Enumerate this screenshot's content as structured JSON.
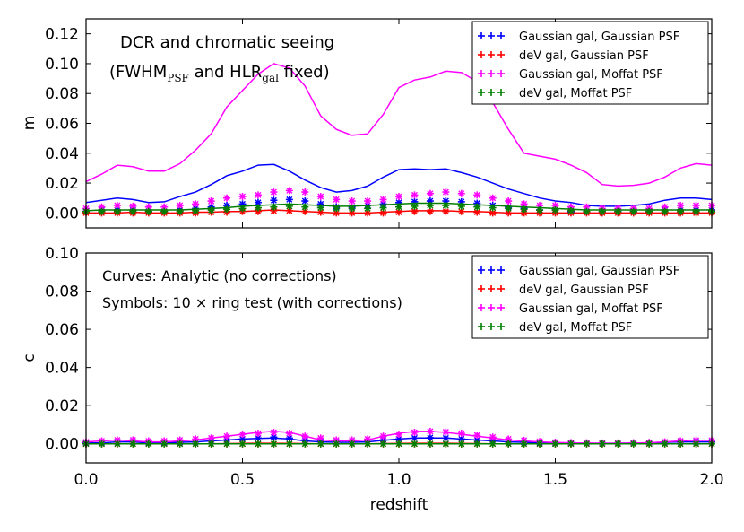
{
  "chart_data": [
    {
      "type": "line",
      "panel": "top",
      "ylabel": "m",
      "xlabel": "",
      "xlim": [
        0.0,
        2.0
      ],
      "ylim": [
        -0.01,
        0.13
      ],
      "yticks": [
        "0.00",
        "0.02",
        "0.04",
        "0.06",
        "0.08",
        "0.10",
        "0.12"
      ],
      "ytick_values": [
        0.0,
        0.02,
        0.04,
        0.06,
        0.08,
        0.1,
        0.12
      ],
      "xticks": [
        "",
        "",
        "",
        "",
        ""
      ],
      "xtick_values": [
        0.0,
        0.5,
        1.0,
        1.5,
        2.0
      ],
      "annotation": {
        "line1": "DCR and chromatic seeing",
        "line2_pre": "(FWHM",
        "line2_sub1": "PSF",
        "line2_mid": " and HLR",
        "line2_sub2": "gal",
        "line2_post": " fixed)"
      },
      "legend": {
        "location": "top-right",
        "entries": [
          {
            "label": "Gaussian gal, Gaussian PSF",
            "color": "#0000ff"
          },
          {
            "label": "deV gal, Gaussian PSF",
            "color": "#ff0000"
          },
          {
            "label": "Gaussian gal, Moffat PSF",
            "color": "#ff00ff"
          },
          {
            "label": "deV gal, Moffat PSF",
            "color": "#008000"
          }
        ]
      },
      "x": [
        0.0,
        0.05,
        0.1,
        0.15,
        0.2,
        0.25,
        0.3,
        0.35,
        0.4,
        0.45,
        0.5,
        0.55,
        0.6,
        0.65,
        0.7,
        0.75,
        0.8,
        0.85,
        0.9,
        0.95,
        1.0,
        1.05,
        1.1,
        1.15,
        1.2,
        1.25,
        1.3,
        1.35,
        1.4,
        1.45,
        1.5,
        1.55,
        1.6,
        1.65,
        1.7,
        1.75,
        1.8,
        1.85,
        1.9,
        1.95,
        2.0
      ],
      "series": [
        {
          "name": "Gaussian gal, Gaussian PSF",
          "color": "#0000ff",
          "values": [
            0.007,
            0.0085,
            0.01,
            0.009,
            0.007,
            0.0075,
            0.011,
            0.014,
            0.019,
            0.025,
            0.028,
            0.032,
            0.0325,
            0.028,
            0.022,
            0.017,
            0.014,
            0.015,
            0.018,
            0.024,
            0.029,
            0.0295,
            0.029,
            0.0295,
            0.027,
            0.024,
            0.02,
            0.016,
            0.013,
            0.01,
            0.008,
            0.007,
            0.005,
            0.0045,
            0.0045,
            0.005,
            0.006,
            0.0085,
            0.01,
            0.01,
            0.009
          ],
          "markers": [
            0.001,
            0.002,
            0.002,
            0.002,
            0.001,
            0.001,
            0.002,
            0.003,
            0.004,
            0.005,
            0.006,
            0.007,
            0.0085,
            0.009,
            0.008,
            0.006,
            0.004,
            0.004,
            0.005,
            0.006,
            0.007,
            0.0075,
            0.008,
            0.008,
            0.0075,
            0.0065,
            0.005,
            0.004,
            0.003,
            0.002,
            0.002,
            0.001,
            0.001,
            0.001,
            0.001,
            0.001,
            0.001,
            0.002,
            0.002,
            0.002,
            0.002
          ]
        },
        {
          "name": "deV gal, Gaussian PSF",
          "color": "#ff0000",
          "values": [
            0.0,
            0.0,
            0.0,
            0.0005,
            0.0,
            0.0,
            0.0,
            0.0005,
            0.0005,
            0.001,
            0.001,
            0.0015,
            0.002,
            0.0015,
            0.001,
            0.0005,
            0.0,
            0.0,
            0.0,
            0.0005,
            0.001,
            0.0015,
            0.0015,
            0.0015,
            0.001,
            0.001,
            0.0005,
            0.0,
            0.0,
            0.0,
            0.0,
            0.0,
            0.0,
            0.0,
            0.0,
            0.0,
            0.0,
            0.0,
            0.0,
            0.0,
            0.0
          ],
          "markers": [
            0.0,
            0.0,
            0.0,
            0.0,
            0.0,
            0.0,
            0.0,
            0.0,
            0.0005,
            0.0005,
            0.001,
            0.001,
            0.0015,
            0.0015,
            0.001,
            0.0005,
            0.0,
            0.0,
            0.0,
            0.0,
            0.0005,
            0.001,
            0.001,
            0.001,
            0.001,
            0.0005,
            0.0,
            0.0,
            0.0,
            0.0,
            0.0,
            0.0,
            0.0,
            0.0,
            0.0,
            0.0,
            0.0,
            0.0,
            0.0,
            0.0,
            0.0
          ]
        },
        {
          "name": "Gaussian gal, Moffat PSF",
          "color": "#ff00ff",
          "values": [
            0.021,
            0.026,
            0.032,
            0.031,
            0.028,
            0.028,
            0.033,
            0.042,
            0.053,
            0.071,
            0.082,
            0.093,
            0.1,
            0.097,
            0.085,
            0.065,
            0.056,
            0.052,
            0.053,
            0.066,
            0.084,
            0.089,
            0.091,
            0.095,
            0.094,
            0.088,
            0.074,
            0.056,
            0.04,
            0.038,
            0.036,
            0.032,
            0.027,
            0.019,
            0.018,
            0.0185,
            0.02,
            0.024,
            0.03,
            0.033,
            0.032
          ],
          "markers": [
            0.003,
            0.004,
            0.005,
            0.0045,
            0.004,
            0.004,
            0.005,
            0.006,
            0.008,
            0.01,
            0.011,
            0.012,
            0.014,
            0.015,
            0.014,
            0.011,
            0.009,
            0.008,
            0.008,
            0.009,
            0.011,
            0.012,
            0.013,
            0.014,
            0.013,
            0.012,
            0.01,
            0.008,
            0.006,
            0.005,
            0.005,
            0.004,
            0.004,
            0.003,
            0.003,
            0.003,
            0.003,
            0.004,
            0.005,
            0.005,
            0.005
          ]
        },
        {
          "name": "deV gal, Moffat PSF",
          "color": "#008000",
          "values": [
            0.0015,
            0.002,
            0.002,
            0.002,
            0.002,
            0.002,
            0.002,
            0.0025,
            0.003,
            0.0035,
            0.0045,
            0.005,
            0.0055,
            0.006,
            0.0055,
            0.005,
            0.0045,
            0.0045,
            0.005,
            0.0055,
            0.006,
            0.0065,
            0.0065,
            0.0065,
            0.006,
            0.0055,
            0.005,
            0.0045,
            0.004,
            0.0035,
            0.003,
            0.0025,
            0.002,
            0.002,
            0.002,
            0.002,
            0.002,
            0.002,
            0.002,
            0.002,
            0.002
          ],
          "markers": [
            0.001,
            0.001,
            0.001,
            0.001,
            0.001,
            0.001,
            0.001,
            0.0015,
            0.002,
            0.0025,
            0.003,
            0.0035,
            0.004,
            0.0045,
            0.004,
            0.0035,
            0.003,
            0.003,
            0.003,
            0.0035,
            0.004,
            0.0045,
            0.005,
            0.005,
            0.0045,
            0.004,
            0.0035,
            0.003,
            0.0025,
            0.002,
            0.002,
            0.0015,
            0.001,
            0.001,
            0.001,
            0.001,
            0.001,
            0.001,
            0.001,
            0.001,
            0.001
          ]
        }
      ]
    },
    {
      "type": "line",
      "panel": "bottom",
      "ylabel": "c",
      "xlabel": "redshift",
      "xlim": [
        0.0,
        2.0
      ],
      "ylim": [
        -0.01,
        0.1
      ],
      "yticks": [
        "0.00",
        "0.02",
        "0.04",
        "0.06",
        "0.08",
        "0.10"
      ],
      "ytick_values": [
        0.0,
        0.02,
        0.04,
        0.06,
        0.08,
        0.1
      ],
      "xticks": [
        "0.0",
        "0.5",
        "1.0",
        "1.5",
        "2.0"
      ],
      "xtick_values": [
        0.0,
        0.5,
        1.0,
        1.5,
        2.0
      ],
      "annotation": {
        "line1": "Curves: Analytic (no corrections)",
        "line2": "Symbols: 10 × ring test (with corrections)"
      },
      "legend": {
        "location": "top-right",
        "entries": [
          {
            "label": "Gaussian gal, Gaussian PSF",
            "color": "#0000ff"
          },
          {
            "label": "deV gal, Gaussian PSF",
            "color": "#ff0000"
          },
          {
            "label": "Gaussian gal, Moffat PSF",
            "color": "#ff00ff"
          },
          {
            "label": "deV gal, Moffat PSF",
            "color": "#008000"
          }
        ]
      },
      "x": [
        0.0,
        0.05,
        0.1,
        0.15,
        0.2,
        0.25,
        0.3,
        0.35,
        0.4,
        0.45,
        0.5,
        0.55,
        0.6,
        0.65,
        0.7,
        0.75,
        0.8,
        0.85,
        0.9,
        0.95,
        1.0,
        1.05,
        1.1,
        1.15,
        1.2,
        1.25,
        1.3,
        1.35,
        1.4,
        1.45,
        1.5,
        1.55,
        1.6,
        1.65,
        1.7,
        1.75,
        1.8,
        1.85,
        1.9,
        1.95,
        2.0
      ],
      "series": [
        {
          "name": "Gaussian gal, Gaussian PSF",
          "color": "#0000ff",
          "values": [
            0.0005,
            0.0005,
            0.001,
            0.001,
            0.0005,
            0.0005,
            0.0008,
            0.001,
            0.0015,
            0.002,
            0.0025,
            0.0028,
            0.003,
            0.0025,
            0.0015,
            0.001,
            0.0008,
            0.0008,
            0.001,
            0.0018,
            0.0025,
            0.003,
            0.003,
            0.003,
            0.0025,
            0.002,
            0.0015,
            0.001,
            0.0008,
            0.0005,
            0.0004,
            0.0003,
            0.0003,
            0.0003,
            0.0003,
            0.0004,
            0.0005,
            0.0008,
            0.001,
            0.001,
            0.001
          ],
          "markers": [
            0.0005,
            0.0005,
            0.001,
            0.001,
            0.0005,
            0.0005,
            0.0008,
            0.001,
            0.0015,
            0.002,
            0.0025,
            0.003,
            0.0035,
            0.003,
            0.002,
            0.0015,
            0.001,
            0.001,
            0.0012,
            0.002,
            0.0025,
            0.003,
            0.0032,
            0.003,
            0.0025,
            0.002,
            0.0015,
            0.001,
            0.0008,
            0.0005,
            0.0004,
            0.0003,
            0.0003,
            0.0003,
            0.0003,
            0.0004,
            0.0005,
            0.0008,
            0.001,
            0.001,
            0.001
          ]
        },
        {
          "name": "deV gal, Gaussian PSF",
          "color": "#ff0000",
          "values": [
            0.0,
            0.0,
            0.0,
            0.0,
            0.0,
            0.0,
            0.0,
            0.0,
            0.0,
            0.0001,
            0.0002,
            0.0003,
            0.0003,
            0.0002,
            0.0001,
            0.0,
            0.0,
            0.0,
            0.0,
            0.0001,
            0.0002,
            0.0003,
            0.0003,
            0.0003,
            0.0002,
            0.0001,
            0.0,
            0.0,
            0.0,
            0.0,
            0.0,
            0.0,
            0.0,
            0.0,
            0.0,
            0.0,
            0.0,
            0.0,
            0.0,
            0.0,
            0.0
          ],
          "markers": [
            0.0,
            0.0,
            0.0,
            0.0,
            0.0,
            0.0,
            0.0,
            0.0,
            0.0,
            0.0,
            0.0,
            0.0,
            0.0,
            0.0,
            0.0,
            0.0,
            0.0,
            0.0,
            0.0,
            0.0,
            0.0,
            0.0,
            0.0,
            0.0,
            0.0,
            0.0,
            0.0,
            0.0,
            0.0,
            0.0,
            0.0,
            0.0,
            0.0,
            0.0,
            0.0,
            0.0,
            0.0,
            0.0,
            0.0,
            0.0,
            0.0
          ]
        },
        {
          "name": "Gaussian gal, Moffat PSF",
          "color": "#ff00ff",
          "values": [
            0.001,
            0.0015,
            0.002,
            0.0015,
            0.001,
            0.001,
            0.0015,
            0.002,
            0.003,
            0.004,
            0.005,
            0.006,
            0.0065,
            0.006,
            0.004,
            0.002,
            0.0015,
            0.0015,
            0.002,
            0.004,
            0.0055,
            0.0065,
            0.0065,
            0.006,
            0.005,
            0.004,
            0.003,
            0.002,
            0.0015,
            0.001,
            0.0007,
            0.0005,
            0.0004,
            0.0003,
            0.0003,
            0.0004,
            0.0006,
            0.001,
            0.0015,
            0.0018,
            0.0018
          ],
          "markers": [
            0.001,
            0.0015,
            0.002,
            0.002,
            0.0015,
            0.0015,
            0.002,
            0.0025,
            0.003,
            0.004,
            0.005,
            0.0055,
            0.006,
            0.0055,
            0.004,
            0.003,
            0.002,
            0.002,
            0.0025,
            0.004,
            0.005,
            0.006,
            0.0065,
            0.0062,
            0.0055,
            0.0045,
            0.0035,
            0.0025,
            0.0018,
            0.0012,
            0.0008,
            0.0006,
            0.0005,
            0.0004,
            0.0004,
            0.0005,
            0.0007,
            0.001,
            0.0015,
            0.0018,
            0.0018
          ]
        },
        {
          "name": "deV gal, Moffat PSF",
          "color": "#008000",
          "values": [
            0.0,
            0.0,
            0.0,
            0.0,
            0.0,
            0.0,
            0.0,
            0.0,
            0.0,
            0.0,
            0.0,
            0.0,
            0.0,
            0.0,
            0.0,
            0.0,
            0.0,
            0.0,
            0.0,
            0.0,
            0.0,
            0.0,
            0.0,
            0.0,
            0.0,
            0.0,
            0.0,
            0.0,
            0.0,
            0.0,
            0.0,
            0.0,
            0.0,
            0.0,
            0.0,
            0.0,
            0.0,
            0.0,
            0.0,
            0.0,
            0.0
          ],
          "markers": [
            0.0,
            0.0,
            0.0,
            0.0,
            0.0,
            0.0,
            0.0,
            0.0,
            0.0,
            0.0,
            0.0,
            0.0,
            0.0,
            0.0,
            0.0,
            0.0,
            0.0,
            0.0,
            0.0,
            0.0,
            0.0,
            0.0,
            0.0,
            0.0,
            0.0,
            0.0,
            0.0,
            0.0,
            0.0,
            0.0,
            0.0,
            0.0,
            0.0,
            0.0,
            0.0,
            0.0,
            0.0,
            0.0,
            0.0,
            0.0,
            0.0
          ]
        }
      ]
    }
  ]
}
